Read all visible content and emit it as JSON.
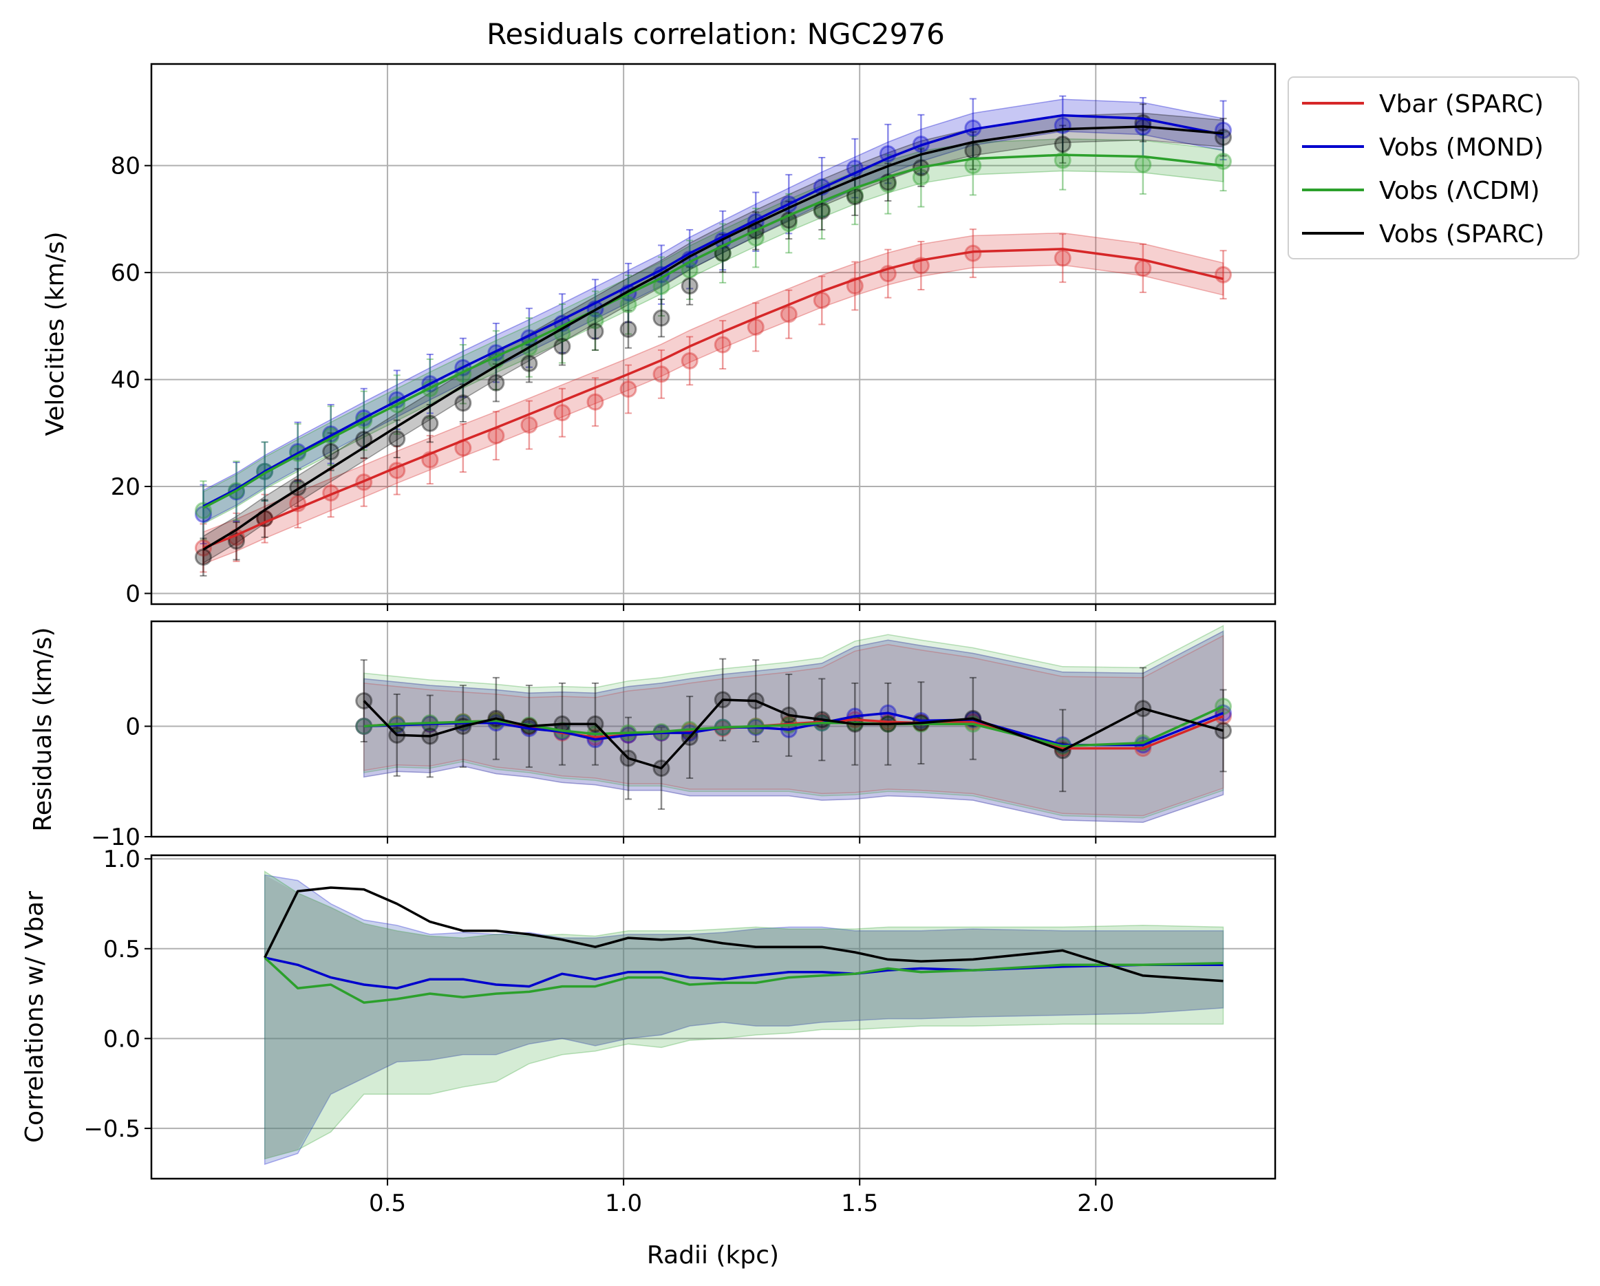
{
  "chart_data": {
    "type": "line",
    "title": "Residuals correlation: NGC2976",
    "xlabel": "Radii (kpc)",
    "xlim": [
      0.0,
      2.38
    ],
    "x_ticks": [
      "0.5",
      "1.0",
      "1.5",
      "2.0"
    ],
    "x_tick_values": [
      0.5,
      1.0,
      1.5,
      2.0
    ],
    "grid": true,
    "legend": {
      "placement": "outside-top-right",
      "entries": [
        {
          "label": "Vbar (SPARC)",
          "color": "#d62728"
        },
        {
          "label": "Vobs (MOND)",
          "color": "#0000cd"
        },
        {
          "label": "Vobs (ΛCDM)",
          "color": "#2ca02c"
        },
        {
          "label": "Vobs (SPARC)",
          "color": "#000000"
        }
      ]
    },
    "panels": [
      {
        "id": "velocities",
        "ylabel": "Velocities (km/s)",
        "ylim": [
          -2,
          99
        ],
        "y_ticks": [
          "0",
          "20",
          "40",
          "60",
          "80"
        ],
        "y_tick_values": [
          0,
          20,
          40,
          60,
          80
        ],
        "x": [
          0.11,
          0.18,
          0.24,
          0.31,
          0.38,
          0.45,
          0.52,
          0.59,
          0.66,
          0.73,
          0.8,
          0.87,
          0.94,
          1.01,
          1.08,
          1.14,
          1.21,
          1.28,
          1.35,
          1.42,
          1.49,
          1.56,
          1.63,
          1.74,
          1.93,
          2.1,
          2.27
        ],
        "series": [
          {
            "name": "Vbar (SPARC)",
            "color": "#d62728",
            "band": 3,
            "values": [
              8.5,
              10.5,
              14.0,
              16.8,
              18.8,
              20.8,
              23.0,
              25.0,
              27.2,
              29.5,
              31.5,
              33.8,
              35.8,
              38.2,
              41.0,
              43.5,
              46.5,
              49.8,
              52.2,
              54.8,
              57.5,
              59.8,
              61.3,
              63.6,
              62.7,
              60.8,
              59.6
            ]
          },
          {
            "name": "Vobs (MOND)",
            "color": "#0000cd",
            "band": 3,
            "values": [
              14.8,
              19.0,
              22.8,
              26.5,
              29.8,
              32.8,
              36.2,
              39.2,
              42.2,
              45.0,
              47.8,
              50.5,
              53.2,
              56.2,
              59.6,
              62.5,
              66.0,
              69.5,
              72.8,
              76.0,
              79.5,
              82.2,
              84.0,
              87.0,
              87.5,
              87.2,
              86.6
            ]
          },
          {
            "name": "Vobs (ΛCDM)",
            "color": "#2ca02c",
            "band": 3,
            "values": [
              15.5,
              19.2,
              22.8,
              26.2,
              29.5,
              32.3,
              35.3,
              38.3,
              41.0,
              43.6,
              46.0,
              48.6,
              51.0,
              54.0,
              57.4,
              60.5,
              63.6,
              66.5,
              69.2,
              71.8,
              74.5,
              76.5,
              77.8,
              80.0,
              81.0,
              80.2,
              80.8
            ]
          },
          {
            "name": "Vobs (SPARC)",
            "color": "#000000",
            "band": 2.5,
            "errors": 3.5,
            "values": [
              6.8,
              9.8,
              14.0,
              19.8,
              26.5,
              28.8,
              28.9,
              31.8,
              35.6,
              39.4,
              43.0,
              46.2,
              49.0,
              49.4,
              51.5,
              57.5,
              63.6,
              67.8,
              69.8,
              71.5,
              74.2,
              76.9,
              79.6,
              82.8,
              84.0,
              88.0,
              85.3
            ]
          }
        ],
        "fit_lines": [
          {
            "name": "Vbar (SPARC)",
            "color": "#d62728",
            "values": [
              8.5,
              10.9,
              13.3,
              15.9,
              18.5,
              21.0,
              23.6,
              26.1,
              28.6,
              31.0,
              33.5,
              36.0,
              38.5,
              41.0,
              43.6,
              46.2,
              48.9,
              51.5,
              54.0,
              56.5,
              58.7,
              60.7,
              62.3,
              63.9,
              64.4,
              62.4,
              58.8
            ]
          },
          {
            "name": "Vobs (MOND)",
            "color": "#0000cd",
            "values": [
              16.3,
              19.5,
              22.8,
              26.2,
              29.5,
              32.8,
              36.0,
              39.2,
              42.3,
              45.3,
              48.2,
              51.2,
              54.3,
              57.4,
              60.5,
              63.6,
              66.7,
              69.8,
              72.8,
              75.8,
              78.6,
              81.4,
              83.8,
              86.8,
              89.4,
              88.8,
              85.8
            ]
          },
          {
            "name": "Vobs (ΛCDM)",
            "color": "#2ca02c",
            "values": [
              16.0,
              19.2,
              22.5,
              25.8,
              29.0,
              32.2,
              35.3,
              38.4,
              41.4,
              44.3,
              47.1,
              50.0,
              53.0,
              56.0,
              59.0,
              62.0,
              65.0,
              67.9,
              70.7,
              73.3,
              75.8,
              77.9,
              79.7,
              81.3,
              82.0,
              81.7,
              80.0
            ]
          },
          {
            "name": "Vobs (SPARC)",
            "color": "#000000",
            "values": [
              8.2,
              11.9,
              15.6,
              19.5,
              23.4,
              27.3,
              31.2,
              35.0,
              38.8,
              42.5,
              46.0,
              49.5,
              53.0,
              56.5,
              59.8,
              63.0,
              66.2,
              69.2,
              72.1,
              74.9,
              77.5,
              79.9,
              82.1,
              84.4,
              86.8,
              87.3,
              86.0
            ]
          }
        ]
      },
      {
        "id": "residuals",
        "ylabel": "Residuals (km/s)",
        "ylim": [
          -10,
          9.5
        ],
        "y_ticks": [
          "0",
          "−10"
        ],
        "y_tick_values": [
          0,
          -10
        ],
        "x": [
          0.45,
          0.52,
          0.59,
          0.66,
          0.73,
          0.8,
          0.87,
          0.94,
          1.01,
          1.08,
          1.14,
          1.21,
          1.28,
          1.35,
          1.42,
          1.49,
          1.56,
          1.63,
          1.74,
          1.93,
          2.1,
          2.27
        ],
        "band_upper": [
          4.3,
          4.0,
          3.7,
          3.5,
          3.3,
          3.0,
          3.1,
          3.0,
          3.6,
          3.9,
          4.3,
          4.7,
          5.0,
          5.3,
          5.7,
          7.2,
          7.8,
          7.3,
          6.6,
          4.9,
          4.8,
          8.6
        ],
        "band_lower": [
          -4.6,
          -4.1,
          -4.2,
          -3.6,
          -4.3,
          -4.6,
          -5.1,
          -5.3,
          -5.8,
          -5.8,
          -6.3,
          -6.3,
          -6.3,
          -6.3,
          -6.7,
          -6.6,
          -6.3,
          -6.4,
          -6.7,
          -8.5,
          -8.7,
          -6.2
        ],
        "series": [
          {
            "name": "Vbar (SPARC)",
            "color": "#d62728",
            "values": [
              0.0,
              0.2,
              0.2,
              0.4,
              0.5,
              0.0,
              -0.6,
              -1.0,
              -0.8,
              -0.6,
              -0.4,
              -0.2,
              0.0,
              0.2,
              0.4,
              0.6,
              0.4,
              0.3,
              0.4,
              -2.0,
              -2.0,
              0.9
            ]
          },
          {
            "name": "Vobs (MOND)",
            "color": "#0000cd",
            "values": [
              0.0,
              0.1,
              0.2,
              0.3,
              0.3,
              -0.2,
              -0.5,
              -1.2,
              -0.8,
              -0.6,
              -0.6,
              -0.1,
              -0.1,
              -0.3,
              0.3,
              0.9,
              1.2,
              0.5,
              0.6,
              -1.7,
              -1.7,
              1.2
            ]
          },
          {
            "name": "Vobs (ΛCDM)",
            "color": "#2ca02c",
            "values": [
              0.0,
              0.2,
              0.3,
              0.4,
              0.5,
              0.1,
              -0.4,
              -0.7,
              -0.6,
              -0.5,
              -0.3,
              -0.1,
              0.0,
              0.1,
              0.3,
              0.3,
              0.2,
              0.2,
              0.2,
              -1.8,
              -1.5,
              1.8
            ]
          },
          {
            "name": "Vobs (SPARC)",
            "color": "#000000",
            "errors": 3.7,
            "values": [
              2.3,
              -0.8,
              -0.9,
              0.0,
              0.7,
              0.0,
              0.2,
              0.2,
              -2.9,
              -3.8,
              -1.0,
              2.4,
              2.3,
              1.0,
              0.6,
              0.2,
              0.2,
              0.3,
              0.7,
              -2.2,
              1.6,
              -0.4
            ]
          }
        ]
      },
      {
        "id": "correlations",
        "ylabel": "Correlations w/ Vbar",
        "ylim": [
          -0.78,
          1.02
        ],
        "y_ticks": [
          "−0.5",
          "0.0",
          "0.5",
          "1.0"
        ],
        "y_tick_values": [
          -0.5,
          0.0,
          0.5,
          1.0
        ],
        "x": [
          0.24,
          0.31,
          0.38,
          0.45,
          0.52,
          0.59,
          0.66,
          0.73,
          0.8,
          0.87,
          0.94,
          1.01,
          1.08,
          1.14,
          1.21,
          1.28,
          1.35,
          1.42,
          1.49,
          1.56,
          1.63,
          1.74,
          1.93,
          2.1,
          2.27
        ],
        "series": [
          {
            "name": "Vobs (MOND)",
            "color": "#0000cd",
            "values": [
              0.45,
              0.41,
              0.34,
              0.3,
              0.28,
              0.33,
              0.33,
              0.3,
              0.29,
              0.36,
              0.33,
              0.37,
              0.37,
              0.34,
              0.33,
              0.35,
              0.37,
              0.37,
              0.36,
              0.38,
              0.39,
              0.38,
              0.4,
              0.41,
              0.41
            ],
            "band_upper": [
              0.91,
              0.88,
              0.75,
              0.66,
              0.63,
              0.58,
              0.59,
              0.58,
              0.59,
              0.56,
              0.56,
              0.58,
              0.58,
              0.58,
              0.59,
              0.61,
              0.62,
              0.62,
              0.6,
              0.6,
              0.6,
              0.61,
              0.6,
              0.6,
              0.6
            ],
            "band_lower": [
              -0.7,
              -0.64,
              -0.31,
              -0.22,
              -0.13,
              -0.12,
              -0.09,
              -0.09,
              -0.03,
              0.0,
              -0.04,
              0.0,
              0.02,
              0.07,
              0.09,
              0.07,
              0.07,
              0.09,
              0.1,
              0.11,
              0.11,
              0.12,
              0.13,
              0.14,
              0.17
            ]
          },
          {
            "name": "Vobs (ΛCDM)",
            "color": "#2ca02c",
            "values": [
              0.45,
              0.28,
              0.3,
              0.2,
              0.22,
              0.25,
              0.23,
              0.25,
              0.26,
              0.29,
              0.29,
              0.34,
              0.34,
              0.3,
              0.31,
              0.31,
              0.34,
              0.35,
              0.36,
              0.39,
              0.37,
              0.38,
              0.41,
              0.41,
              0.42
            ],
            "band_upper": [
              0.93,
              0.81,
              0.73,
              0.64,
              0.6,
              0.57,
              0.56,
              0.58,
              0.57,
              0.58,
              0.57,
              0.6,
              0.6,
              0.6,
              0.61,
              0.62,
              0.61,
              0.61,
              0.61,
              0.62,
              0.62,
              0.62,
              0.62,
              0.63,
              0.62
            ],
            "band_lower": [
              -0.67,
              -0.62,
              -0.52,
              -0.31,
              -0.31,
              -0.31,
              -0.27,
              -0.24,
              -0.14,
              -0.09,
              -0.07,
              -0.03,
              -0.05,
              -0.01,
              0.0,
              0.02,
              0.03,
              0.05,
              0.05,
              0.06,
              0.07,
              0.07,
              0.08,
              0.08,
              0.08
            ]
          },
          {
            "name": "Vobs (SPARC)",
            "color": "#000000",
            "values": [
              0.45,
              0.82,
              0.84,
              0.83,
              0.75,
              0.65,
              0.6,
              0.6,
              0.58,
              0.55,
              0.51,
              0.56,
              0.55,
              0.56,
              0.53,
              0.51,
              0.51,
              0.51,
              0.48,
              0.44,
              0.43,
              0.44,
              0.49,
              0.35,
              0.32
            ]
          }
        ]
      }
    ]
  }
}
